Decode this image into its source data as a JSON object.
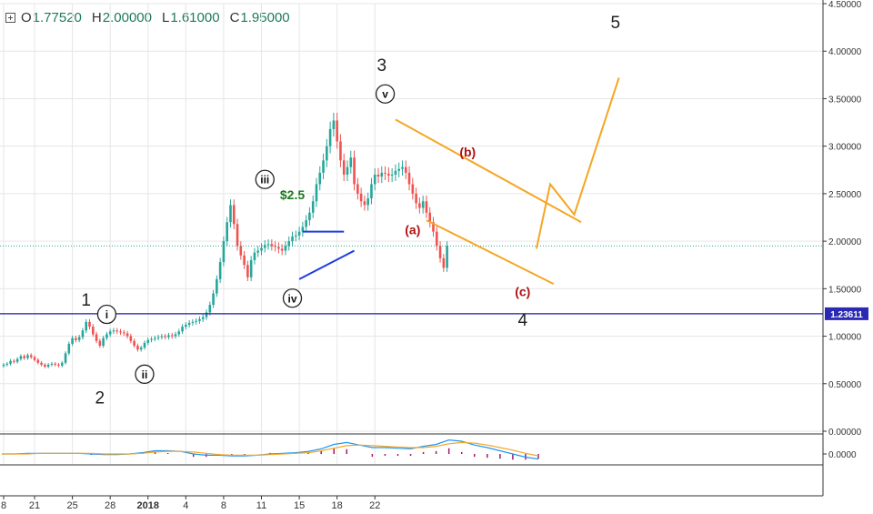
{
  "legend": {
    "open_key": "O",
    "open": "1.77520",
    "high_key": "H",
    "high": "2.00000",
    "low_key": "L",
    "low": "1.61000",
    "close_key": "C",
    "close": "1.95000"
  },
  "colors": {
    "up": "#26a69a",
    "down": "#ef5350",
    "grid": "#e6e6e6",
    "level_line": "#1a1aa8",
    "wave_orange": "#f5a623",
    "triangle_blue": "#1f3ee0",
    "label_red": "#b01010",
    "price_label": "#2a2ab5",
    "macd": "#2196f3",
    "signal": "#f5a623",
    "hist": "#a01a6a",
    "dotted": "#26a69a"
  },
  "chart_data": {
    "type": "candlestick",
    "title": "",
    "xlabel": "",
    "ylabel": "",
    "x_axis": {
      "tick_labels": [
        "8",
        "21",
        "25",
        "28",
        "2018",
        "4",
        "8",
        "11",
        "15",
        "18",
        "22"
      ],
      "tick_index": [
        0,
        9,
        20,
        31,
        42,
        53,
        64,
        75,
        86,
        97,
        108
      ]
    },
    "y_axis": {
      "ylim": [
        0,
        4.5
      ],
      "ticks": [
        "0.00000",
        "0.50000",
        "1.00000",
        "1.50000",
        "2.00000",
        "2.50000",
        "3.00000",
        "3.50000",
        "4.00000",
        "4.50000"
      ],
      "tick_values": [
        0,
        0.5,
        1,
        1.5,
        2,
        2.5,
        3,
        3.5,
        4,
        4.5
      ]
    },
    "closes": [
      0.7,
      0.71,
      0.74,
      0.73,
      0.76,
      0.79,
      0.77,
      0.8,
      0.78,
      0.75,
      0.72,
      0.7,
      0.68,
      0.7,
      0.71,
      0.7,
      0.69,
      0.72,
      0.82,
      0.92,
      0.98,
      0.96,
      0.99,
      1.06,
      1.15,
      1.1,
      1.02,
      0.95,
      0.9,
      0.98,
      1.02,
      1.05,
      1.06,
      1.05,
      1.04,
      1.03,
      1.0,
      0.95,
      0.9,
      0.86,
      0.88,
      0.93,
      0.96,
      0.97,
      0.98,
      0.99,
      1.0,
      0.99,
      1.01,
      1.0,
      1.02,
      1.05,
      1.1,
      1.12,
      1.14,
      1.15,
      1.16,
      1.18,
      1.2,
      1.25,
      1.33,
      1.45,
      1.6,
      1.78,
      2.0,
      2.2,
      2.38,
      2.18,
      1.95,
      1.85,
      1.75,
      1.62,
      1.8,
      1.88,
      1.9,
      1.93,
      1.96,
      1.97,
      1.95,
      1.94,
      1.92,
      1.9,
      1.95,
      2.0,
      2.05,
      2.06,
      2.1,
      2.15,
      2.22,
      2.3,
      2.42,
      2.6,
      2.72,
      2.85,
      3.0,
      3.18,
      3.27,
      3.05,
      2.85,
      2.7,
      2.78,
      2.88,
      2.6,
      2.5,
      2.42,
      2.38,
      2.45,
      2.6,
      2.7,
      2.68,
      2.72,
      2.71,
      2.69,
      2.7,
      2.74,
      2.76,
      2.78,
      2.72,
      2.6,
      2.5,
      2.4,
      2.35,
      2.42,
      2.3,
      2.2,
      2.1,
      1.95,
      1.82,
      1.72,
      1.95
    ],
    "closes_note": "approximate closing prices read off the axis, one per candle",
    "reference_levels": [
      {
        "value": 1.23611,
        "label": "1.23611"
      },
      {
        "value": 1.95,
        "label": ""
      }
    ],
    "annotations": [
      {
        "text": "1",
        "x": 24,
        "y": 1.38
      },
      {
        "text": "2",
        "x": 28,
        "y": 0.35
      },
      {
        "text": "i",
        "x": 30,
        "y": 1.23,
        "circled": true
      },
      {
        "text": "ii",
        "x": 41,
        "y": 0.6,
        "circled": true
      },
      {
        "text": "iii",
        "x": 76,
        "y": 2.65,
        "circled": true
      },
      {
        "text": "$2.5",
        "x": 84,
        "y": 2.5,
        "color": "green"
      },
      {
        "text": "iv",
        "x": 84,
        "y": 1.4,
        "circled": true
      },
      {
        "text": "3",
        "x": 110,
        "y": 3.85
      },
      {
        "text": "v",
        "x": 111,
        "y": 3.55,
        "circled": true
      },
      {
        "text": "(b)",
        "x": 135,
        "y": 2.95,
        "color": "red"
      },
      {
        "text": "(a)",
        "x": 119,
        "y": 2.13,
        "color": "red"
      },
      {
        "text": "(c)",
        "x": 151,
        "y": 1.48,
        "color": "red"
      },
      {
        "text": "4",
        "x": 151,
        "y": 1.17
      },
      {
        "text": "5",
        "x": 178,
        "y": 4.3
      }
    ],
    "macd": {
      "macd_line": [
        0.0,
        0.0,
        0.01,
        0.01,
        0.01,
        0.01,
        0.01,
        0.0,
        -0.01,
        -0.01,
        0.0,
        0.02,
        0.05,
        0.05,
        0.04,
        0.0,
        -0.02,
        -0.02,
        -0.03,
        -0.03,
        -0.02,
        0.0,
        0.01,
        0.02,
        0.04,
        0.08,
        0.15,
        0.18,
        0.14,
        0.1,
        0.1,
        0.09,
        0.08,
        0.12,
        0.15,
        0.22,
        0.2,
        0.14,
        0.1,
        0.05,
        0.0,
        -0.05,
        -0.08
      ],
      "signal_line": [
        0.0,
        0.0,
        0.0,
        0.01,
        0.01,
        0.01,
        0.01,
        0.01,
        0.0,
        0.0,
        0.0,
        0.01,
        0.03,
        0.04,
        0.04,
        0.03,
        0.01,
        -0.01,
        -0.02,
        -0.02,
        -0.02,
        -0.01,
        0.0,
        0.01,
        0.02,
        0.05,
        0.09,
        0.13,
        0.14,
        0.13,
        0.12,
        0.11,
        0.1,
        0.1,
        0.12,
        0.16,
        0.18,
        0.17,
        0.14,
        0.1,
        0.06,
        0.01,
        -0.03
      ],
      "y_tick": "0.0000",
      "y_tick_value": 0
    }
  }
}
